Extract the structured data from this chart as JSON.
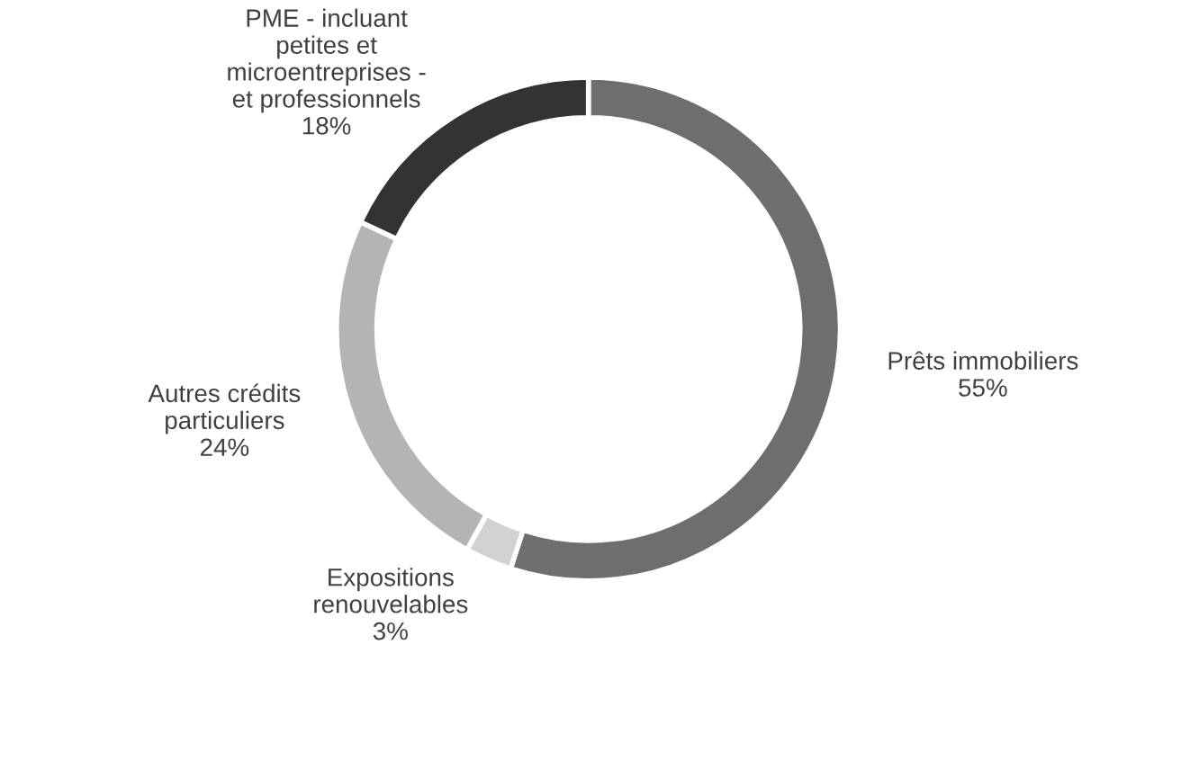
{
  "chart_data": {
    "type": "donut",
    "categories": [
      "Prêts immobiliers",
      "Expositions\nrenouvelables",
      "Autres crédits\nparticuliers",
      "PME - incluant\npetites et\nmicroentreprises -\net professionnels"
    ],
    "values": [
      55,
      3,
      24,
      18
    ],
    "value_labels": [
      "55%",
      "3%",
      "24%",
      "18%"
    ],
    "colors": [
      "#6e6e6e",
      "#d2d2d2",
      "#b4b4b4",
      "#333333"
    ],
    "legend": false
  }
}
